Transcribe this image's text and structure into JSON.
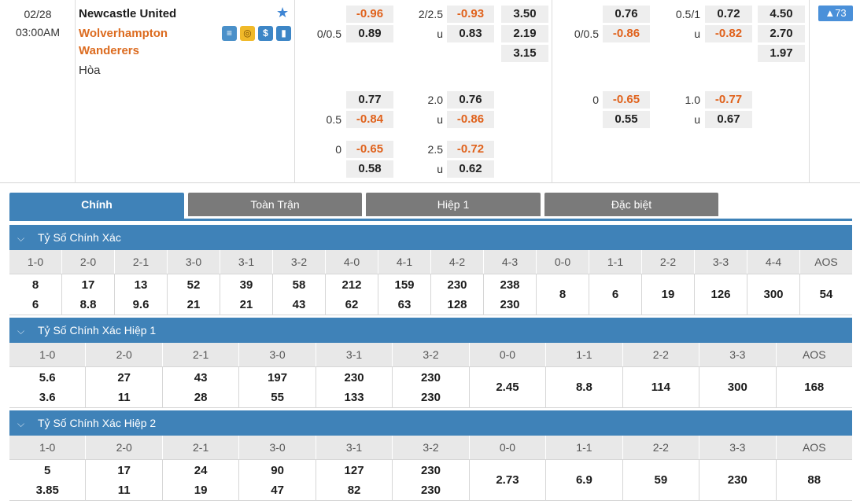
{
  "match": {
    "date": "02/28",
    "time": "03:00AM",
    "home_team": "Newcastle United",
    "away_team_line1": "Wolverhampton",
    "away_team_line2": "Wanderers",
    "draw_label": "Hòa",
    "more_count": "▲73"
  },
  "icons": [
    "scoreboard-icon",
    "coin-icon",
    "dollar-icon",
    "stats-icon"
  ],
  "odds": {
    "ft_hdp": {
      "row1": {
        "hcp": "",
        "val": "-0.96"
      },
      "row2": {
        "hcp": "0/0.5",
        "val": "0.89"
      }
    },
    "ft_ou": {
      "row1": {
        "hcp": "2/2.5",
        "val": "-0.93"
      },
      "row2": {
        "hcp": "u",
        "val": "0.83"
      }
    },
    "ft_1x2": [
      "3.50",
      "2.19",
      "3.15"
    ],
    "ft_alt1_hdp": {
      "row1": {
        "hcp": "",
        "val": "0.77"
      },
      "row2": {
        "hcp": "0.5",
        "val": "-0.84"
      }
    },
    "ft_alt1_ou": {
      "row1": {
        "hcp": "2.0",
        "val": "0.76"
      },
      "row2": {
        "hcp": "u",
        "val": "-0.86"
      }
    },
    "ft_alt2_hdp": {
      "row1": {
        "hcp": "0",
        "val": "-0.65"
      },
      "row2": {
        "hcp": "",
        "val": "0.58"
      }
    },
    "ft_alt2_ou": {
      "row1": {
        "hcp": "2.5",
        "val": "-0.72"
      },
      "row2": {
        "hcp": "u",
        "val": "0.62"
      }
    },
    "h1_hdp": {
      "row1": {
        "hcp": "",
        "val": "0.76"
      },
      "row2": {
        "hcp": "0/0.5",
        "val": "-0.86"
      }
    },
    "h1_ou": {
      "row1": {
        "hcp": "0.5/1",
        "val": "0.72"
      },
      "row2": {
        "hcp": "u",
        "val": "-0.82"
      }
    },
    "h1_1x2": [
      "4.50",
      "2.70",
      "1.97"
    ],
    "h1_alt_hdp": {
      "row1": {
        "hcp": "0",
        "val": "-0.65"
      },
      "row2": {
        "hcp": "",
        "val": "0.55"
      }
    },
    "h1_alt_ou": {
      "row1": {
        "hcp": "1.0",
        "val": "-0.77"
      },
      "row2": {
        "hcp": "u",
        "val": "0.67"
      }
    }
  },
  "tabs": [
    "Chính",
    "Toàn Trận",
    "Hiệp 1",
    "Đặc biệt"
  ],
  "sections": [
    {
      "title": "Tỷ Số Chính Xác",
      "headers": [
        "1-0",
        "2-0",
        "2-1",
        "3-0",
        "3-1",
        "3-2",
        "4-0",
        "4-1",
        "4-2",
        "4-3",
        "0-0",
        "1-1",
        "2-2",
        "3-3",
        "4-4",
        "AOS"
      ],
      "values": [
        [
          "8",
          "6"
        ],
        [
          "17",
          "8.8"
        ],
        [
          "13",
          "9.6"
        ],
        [
          "52",
          "21"
        ],
        [
          "39",
          "21"
        ],
        [
          "58",
          "43"
        ],
        [
          "212",
          "62"
        ],
        [
          "159",
          "63"
        ],
        [
          "230",
          "128"
        ],
        [
          "238",
          "230"
        ],
        [
          "8"
        ],
        [
          "6"
        ],
        [
          "19"
        ],
        [
          "126"
        ],
        [
          "300"
        ],
        [
          "54"
        ]
      ]
    },
    {
      "title": "Tỷ Số Chính Xác Hiệp 1",
      "headers": [
        "1-0",
        "2-0",
        "2-1",
        "3-0",
        "3-1",
        "3-2",
        "0-0",
        "1-1",
        "2-2",
        "3-3",
        "AOS"
      ],
      "values": [
        [
          "5.6",
          "3.6"
        ],
        [
          "27",
          "11"
        ],
        [
          "43",
          "28"
        ],
        [
          "197",
          "55"
        ],
        [
          "230",
          "133"
        ],
        [
          "230",
          "230"
        ],
        [
          "2.45"
        ],
        [
          "8.8"
        ],
        [
          "114"
        ],
        [
          "300"
        ],
        [
          "168"
        ]
      ]
    },
    {
      "title": "Tỷ Số Chính Xác Hiệp 2",
      "headers": [
        "1-0",
        "2-0",
        "2-1",
        "3-0",
        "3-1",
        "3-2",
        "0-0",
        "1-1",
        "2-2",
        "3-3",
        "AOS"
      ],
      "values": [
        [
          "5",
          "3.85"
        ],
        [
          "17",
          "11"
        ],
        [
          "24",
          "19"
        ],
        [
          "90",
          "47"
        ],
        [
          "127",
          "82"
        ],
        [
          "230",
          "230"
        ],
        [
          "2.73"
        ],
        [
          "6.9"
        ],
        [
          "59"
        ],
        [
          "230"
        ],
        [
          "88"
        ]
      ]
    }
  ]
}
